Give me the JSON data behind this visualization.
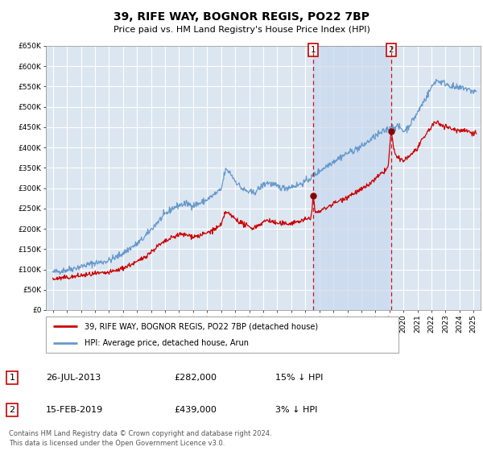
{
  "title": "39, RIFE WAY, BOGNOR REGIS, PO22 7BP",
  "subtitle": "Price paid vs. HM Land Registry's House Price Index (HPI)",
  "background_color": "#ffffff",
  "plot_background_color": "#dce6f1",
  "grid_color": "#ffffff",
  "hpi_line_color": "#6699cc",
  "price_line_color": "#cc0000",
  "marker_color": "#880000",
  "shade_color": "#c8d8ee",
  "ylim": [
    0,
    650000
  ],
  "xlim_start": 1994.5,
  "xlim_end": 2025.5,
  "ytick_labels": [
    "£0",
    "£50K",
    "£100K",
    "£150K",
    "£200K",
    "£250K",
    "£300K",
    "£350K",
    "£400K",
    "£450K",
    "£500K",
    "£550K",
    "£600K",
    "£650K"
  ],
  "ytick_values": [
    0,
    50000,
    100000,
    150000,
    200000,
    250000,
    300000,
    350000,
    400000,
    450000,
    500000,
    550000,
    600000,
    650000
  ],
  "xtick_values": [
    1995,
    1996,
    1997,
    1998,
    1999,
    2000,
    2001,
    2002,
    2003,
    2004,
    2005,
    2006,
    2007,
    2008,
    2009,
    2010,
    2011,
    2012,
    2013,
    2014,
    2015,
    2016,
    2017,
    2018,
    2019,
    2020,
    2021,
    2022,
    2023,
    2024,
    2025
  ],
  "transaction1_x": 2013.569,
  "transaction1_y": 282000,
  "transaction1_label": "1",
  "transaction1_date": "26-JUL-2013",
  "transaction1_price": "£282,000",
  "transaction1_hpi": "15% ↓ HPI",
  "transaction2_x": 2019.121,
  "transaction2_y": 439000,
  "transaction2_label": "2",
  "transaction2_date": "15-FEB-2019",
  "transaction2_price": "£439,000",
  "transaction2_hpi": "3% ↓ HPI",
  "legend_property": "39, RIFE WAY, BOGNOR REGIS, PO22 7BP (detached house)",
  "legend_hpi": "HPI: Average price, detached house, Arun",
  "footer1": "Contains HM Land Registry data © Crown copyright and database right 2024.",
  "footer2": "This data is licensed under the Open Government Licence v3.0."
}
